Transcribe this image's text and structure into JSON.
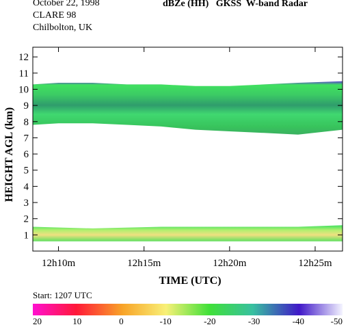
{
  "header": {
    "date": "October 22, 1998",
    "campaign": "CLARE 98",
    "location": "Chilbolton, UK",
    "title": "dBZe (HH)   GKSS  W-band Radar"
  },
  "chart_data": {
    "type": "heatmap",
    "title": "dBZe (HH)   GKSS  W-band Radar",
    "xlabel": "TIME (UTC)",
    "ylabel": "HEIGHT AGL (km)",
    "x_ticks": [
      "12h10m",
      "12h15m",
      "12h20m",
      "12h25m"
    ],
    "y_ticks": [
      1,
      2,
      3,
      4,
      5,
      6,
      7,
      8,
      9,
      10,
      11,
      12
    ],
    "ylim": [
      0,
      12.6
    ],
    "xlim_minutes": [
      8.5,
      26.6
    ],
    "layers": [
      {
        "name": "upper cloud",
        "time_min": [
          8.5,
          10,
          12,
          14,
          16,
          18,
          20,
          22,
          24,
          26.6
        ],
        "top_km": [
          10.3,
          10.4,
          10.4,
          10.3,
          10.3,
          10.2,
          10.2,
          10.3,
          10.4,
          10.5
        ],
        "base_km": [
          7.8,
          7.9,
          7.9,
          7.8,
          7.7,
          7.5,
          7.4,
          7.3,
          7.2,
          7.5
        ]
      },
      {
        "name": "lower cloud",
        "time_min": [
          8.5,
          12,
          16,
          20,
          24,
          26.6
        ],
        "top_km": [
          1.5,
          1.4,
          1.5,
          1.5,
          1.5,
          1.6
        ],
        "base_km": [
          0.6,
          0.6,
          0.6,
          0.6,
          0.6,
          0.6
        ]
      }
    ],
    "start_label": "Start:  1207 UTC",
    "colorbar": {
      "ticks": [
        "20",
        "10",
        "0",
        "-10",
        "-20",
        "-30",
        "-40",
        "-50"
      ],
      "colors": [
        "#ff00ff",
        "#ff2030",
        "#f8a020",
        "#f8f080",
        "#40e040",
        "#40c080",
        "#4020c0",
        "#f0f0ff"
      ]
    }
  }
}
